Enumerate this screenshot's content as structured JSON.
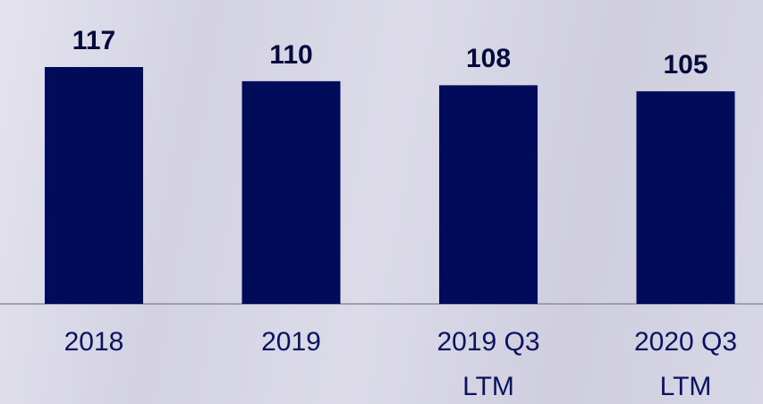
{
  "chart_data": {
    "type": "bar",
    "categories": [
      "2018",
      "2019",
      "2019 Q3 LTM",
      "2020 Q3 LTM"
    ],
    "values": [
      117,
      110,
      108,
      105
    ],
    "color": "#000c5a"
  }
}
